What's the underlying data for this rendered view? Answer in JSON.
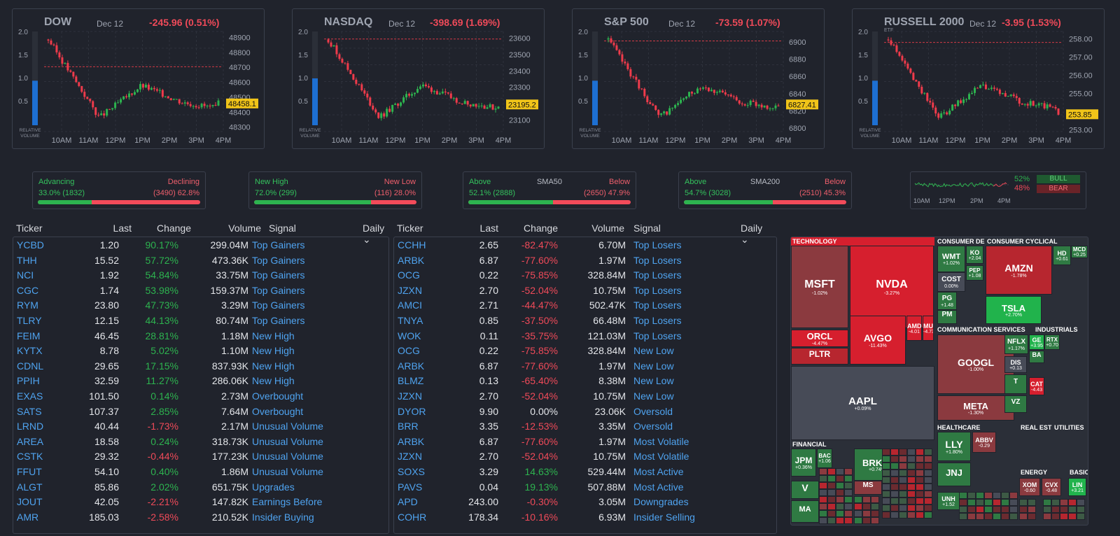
{
  "indices": [
    {
      "name": "DOW",
      "etf": "",
      "date": "Dec 12",
      "change": "-245.96 (0.51%)",
      "price_tag": "48458.1",
      "y_ticks": [
        "48900",
        "48800",
        "48700",
        "48600",
        "48500",
        "48400",
        "48300"
      ],
      "x_ticks": [
        "10AM",
        "11AM",
        "12PM",
        "1PM",
        "2PM",
        "3PM",
        "4PM"
      ],
      "vol_ticks": [
        "2.0",
        "1.5",
        "1.0",
        "0.5"
      ],
      "vol_label_1": "RELATIVE",
      "vol_label_2": "VOLUME",
      "relative_volume": 0.95,
      "prev_close": 48704,
      "ylim": [
        48270,
        48940
      ],
      "last": 48458.1
    },
    {
      "name": "NASDAQ",
      "etf": "",
      "date": "Dec 12",
      "change": "-398.69 (1.69%)",
      "price_tag": "23195.2",
      "y_ticks": [
        "23600",
        "23500",
        "23400",
        "23300",
        "23200",
        "23100"
      ],
      "x_ticks": [
        "10AM",
        "11AM",
        "12PM",
        "1PM",
        "2PM",
        "3PM",
        "4PM"
      ],
      "vol_ticks": [
        "2.0",
        "1.5",
        "1.0",
        "0.5"
      ],
      "vol_label_1": "RELATIVE",
      "vol_label_2": "VOLUME",
      "relative_volume": 1.0,
      "prev_close": 23594,
      "ylim": [
        23030,
        23640
      ],
      "last": 23195.2
    },
    {
      "name": "S&P 500",
      "etf": "",
      "date": "Dec 12",
      "change": "-73.59 (1.07%)",
      "price_tag": "6827.41",
      "y_ticks": [
        "6900",
        "6880",
        "6860",
        "6840",
        "6820",
        "6800"
      ],
      "x_ticks": [
        "10AM",
        "11AM",
        "12PM",
        "1PM",
        "2PM",
        "3PM",
        "4PM"
      ],
      "vol_ticks": [
        "2.0",
        "1.5",
        "1.0",
        "0.5"
      ],
      "vol_label_1": "RELATIVE",
      "vol_label_2": "VOLUME",
      "relative_volume": 0.95,
      "prev_close": 6901,
      "ylim": [
        6796,
        6912
      ],
      "last": 6827.41
    },
    {
      "name": "RUSSELL 2000",
      "etf": "ETF",
      "date": "Dec 12",
      "change": "-3.95 (1.53%)",
      "price_tag": "253.85",
      "y_ticks": [
        "258.00",
        "257.00",
        "256.00",
        "255.00",
        "253.00"
      ],
      "x_ticks": [
        "10AM",
        "11AM",
        "12PM",
        "1PM",
        "2PM",
        "3PM",
        "4PM"
      ],
      "vol_ticks": [
        "2.0",
        "1.5",
        "1.0",
        "0.5"
      ],
      "vol_label_1": "RELATIVE",
      "vol_label_2": "VOLUME",
      "relative_volume": 0.95,
      "prev_close": 257.8,
      "ylim": [
        252.9,
        258.4
      ],
      "last": 253.85
    }
  ],
  "breadth": [
    {
      "left_title": "Advancing",
      "right_title": "Declining",
      "center_title": "",
      "left_value": "33.0% (1832)",
      "right_value": "(3490) 62.8%",
      "left_fraction": 0.33
    },
    {
      "left_title": "New High",
      "right_title": "New Low",
      "center_title": "",
      "left_value": "72.0% (299)",
      "right_value": "(116) 28.0%",
      "left_fraction": 0.72
    },
    {
      "left_title": "Above",
      "right_title": "Below",
      "center_title": "SMA50",
      "left_value": "52.1% (2888)",
      "right_value": "(2650) 47.9%",
      "left_fraction": 0.521
    },
    {
      "left_title": "Above",
      "right_title": "Below",
      "center_title": "SMA200",
      "left_value": "54.7% (3028)",
      "right_value": "(2510) 45.3%",
      "left_fraction": 0.547
    }
  ],
  "sentiment": {
    "bull_pct": "52%",
    "bear_pct": "48%",
    "bull_label": "BULL",
    "bear_label": "BEAR",
    "x_ticks": [
      "10AM",
      "12PM",
      "2PM",
      "4PM"
    ]
  },
  "columns": {
    "ticker": "Ticker",
    "last": "Last",
    "change": "Change",
    "volume": "Volume",
    "signal": "Signal",
    "period": "Daily"
  },
  "gainers_table": [
    {
      "ticker": "YCBD",
      "last": "1.20",
      "change": "90.17%",
      "dir": "up",
      "volume": "299.04M",
      "signal": "Top Gainers"
    },
    {
      "ticker": "THH",
      "last": "15.52",
      "change": "57.72%",
      "dir": "up",
      "volume": "473.36K",
      "signal": "Top Gainers"
    },
    {
      "ticker": "NCI",
      "last": "1.92",
      "change": "54.84%",
      "dir": "up",
      "volume": "33.75M",
      "signal": "Top Gainers"
    },
    {
      "ticker": "CGC",
      "last": "1.74",
      "change": "53.98%",
      "dir": "up",
      "volume": "159.37M",
      "signal": "Top Gainers"
    },
    {
      "ticker": "RYM",
      "last": "23.80",
      "change": "47.73%",
      "dir": "up",
      "volume": "3.29M",
      "signal": "Top Gainers"
    },
    {
      "ticker": "TLRY",
      "last": "12.15",
      "change": "44.13%",
      "dir": "up",
      "volume": "80.74M",
      "signal": "Top Gainers"
    },
    {
      "ticker": "FEIM",
      "last": "46.45",
      "change": "28.81%",
      "dir": "up",
      "volume": "1.18M",
      "signal": "New High"
    },
    {
      "ticker": "KYTX",
      "last": "8.78",
      "change": "5.02%",
      "dir": "up",
      "volume": "1.10M",
      "signal": "New High"
    },
    {
      "ticker": "CDNL",
      "last": "29.65",
      "change": "17.15%",
      "dir": "up",
      "volume": "837.93K",
      "signal": "New High"
    },
    {
      "ticker": "PPIH",
      "last": "32.59",
      "change": "11.27%",
      "dir": "up",
      "volume": "286.06K",
      "signal": "New High"
    },
    {
      "ticker": "EXAS",
      "last": "101.50",
      "change": "0.14%",
      "dir": "up",
      "volume": "2.73M",
      "signal": "Overbought"
    },
    {
      "ticker": "SATS",
      "last": "107.37",
      "change": "2.85%",
      "dir": "up",
      "volume": "7.64M",
      "signal": "Overbought"
    },
    {
      "ticker": "LRND",
      "last": "40.44",
      "change": "-1.73%",
      "dir": "down",
      "volume": "2.17M",
      "signal": "Unusual Volume"
    },
    {
      "ticker": "AREA",
      "last": "18.58",
      "change": "0.24%",
      "dir": "up",
      "volume": "318.73K",
      "signal": "Unusual Volume"
    },
    {
      "ticker": "CSTK",
      "last": "29.32",
      "change": "-0.44%",
      "dir": "down",
      "volume": "177.23K",
      "signal": "Unusual Volume"
    },
    {
      "ticker": "FFUT",
      "last": "54.10",
      "change": "0.40%",
      "dir": "up",
      "volume": "1.86M",
      "signal": "Unusual Volume"
    },
    {
      "ticker": "ALGT",
      "last": "85.86",
      "change": "2.02%",
      "dir": "up",
      "volume": "651.75K",
      "signal": "Upgrades"
    },
    {
      "ticker": "JOUT",
      "last": "42.05",
      "change": "-2.21%",
      "dir": "down",
      "volume": "147.82K",
      "signal": "Earnings Before"
    },
    {
      "ticker": "AMR",
      "last": "185.03",
      "change": "-2.58%",
      "dir": "down",
      "volume": "210.52K",
      "signal": "Insider Buying"
    }
  ],
  "losers_table": [
    {
      "ticker": "CCHH",
      "last": "2.65",
      "change": "-82.47%",
      "dir": "down",
      "volume": "6.70M",
      "signal": "Top Losers"
    },
    {
      "ticker": "ARBK",
      "last": "6.87",
      "change": "-77.60%",
      "dir": "down",
      "volume": "1.97M",
      "signal": "Top Losers"
    },
    {
      "ticker": "OCG",
      "last": "0.22",
      "change": "-75.85%",
      "dir": "down",
      "volume": "328.84M",
      "signal": "Top Losers"
    },
    {
      "ticker": "JZXN",
      "last": "2.70",
      "change": "-52.04%",
      "dir": "down",
      "volume": "10.75M",
      "signal": "Top Losers"
    },
    {
      "ticker": "AMCI",
      "last": "2.71",
      "change": "-44.47%",
      "dir": "down",
      "volume": "502.47K",
      "signal": "Top Losers"
    },
    {
      "ticker": "TNYA",
      "last": "0.85",
      "change": "-37.50%",
      "dir": "down",
      "volume": "66.48M",
      "signal": "Top Losers"
    },
    {
      "ticker": "WOK",
      "last": "0.11",
      "change": "-35.75%",
      "dir": "down",
      "volume": "121.03M",
      "signal": "Top Losers"
    },
    {
      "ticker": "OCG",
      "last": "0.22",
      "change": "-75.85%",
      "dir": "down",
      "volume": "328.84M",
      "signal": "New Low"
    },
    {
      "ticker": "ARBK",
      "last": "6.87",
      "change": "-77.60%",
      "dir": "down",
      "volume": "1.97M",
      "signal": "New Low"
    },
    {
      "ticker": "BLMZ",
      "last": "0.13",
      "change": "-65.40%",
      "dir": "down",
      "volume": "8.38M",
      "signal": "New Low"
    },
    {
      "ticker": "JZXN",
      "last": "2.70",
      "change": "-52.04%",
      "dir": "down",
      "volume": "10.75M",
      "signal": "New Low"
    },
    {
      "ticker": "DYOR",
      "last": "9.90",
      "change": "0.00%",
      "dir": "flat",
      "volume": "23.06K",
      "signal": "Oversold"
    },
    {
      "ticker": "BRR",
      "last": "3.35",
      "change": "-12.53%",
      "dir": "down",
      "volume": "3.35M",
      "signal": "Oversold"
    },
    {
      "ticker": "ARBK",
      "last": "6.87",
      "change": "-77.60%",
      "dir": "down",
      "volume": "1.97M",
      "signal": "Most Volatile"
    },
    {
      "ticker": "JZXN",
      "last": "2.70",
      "change": "-52.04%",
      "dir": "down",
      "volume": "10.75M",
      "signal": "Most Volatile"
    },
    {
      "ticker": "SOXS",
      "last": "3.29",
      "change": "14.63%",
      "dir": "up",
      "volume": "529.44M",
      "signal": "Most Active"
    },
    {
      "ticker": "PAVS",
      "last": "0.04",
      "change": "19.13%",
      "dir": "up",
      "volume": "507.88M",
      "signal": "Most Active"
    },
    {
      "ticker": "APD",
      "last": "243.00",
      "change": "-0.30%",
      "dir": "down",
      "volume": "3.05M",
      "signal": "Downgrades"
    },
    {
      "ticker": "COHR",
      "last": "178.34",
      "change": "-10.16%",
      "dir": "down",
      "volume": "6.93M",
      "signal": "Insider Selling"
    }
  ],
  "treemap": {
    "sectors": [
      "TECHNOLOGY",
      "CONSUMER DE",
      "CONSUMER CYCLICAL",
      "COMMUNICATION SERVICES",
      "INDUSTRIALS",
      "FINANCIAL",
      "HEALTHCARE",
      "REAL EST",
      "UTILITIES",
      "ENERGY",
      "BASIC"
    ],
    "tiles": [
      {
        "t": "MSFT",
        "p": "-1.02%",
        "c": "#8b3a3f"
      },
      {
        "t": "NVDA",
        "p": "-3.27%",
        "c": "#d61f2e"
      },
      {
        "t": "ORCL",
        "p": "-4.47%",
        "c": "#d61f2e"
      },
      {
        "t": "PLTR",
        "p": "",
        "c": "#b7262f"
      },
      {
        "t": "AVGO",
        "p": "-11.43%",
        "c": "#d61f2e"
      },
      {
        "t": "AMD",
        "p": "-4.01",
        "c": "#d61f2e"
      },
      {
        "t": "MU",
        "p": "-4.73",
        "c": "#d61f2e"
      },
      {
        "t": "AAPL",
        "p": "+0.09%",
        "c": "#474b57"
      },
      {
        "t": "WMT",
        "p": "+1.02%",
        "c": "#2f7a43"
      },
      {
        "t": "KO",
        "p": "+2.04",
        "c": "#2f7a43"
      },
      {
        "t": "COST",
        "p": "0.00%",
        "c": "#474b57"
      },
      {
        "t": "PEP",
        "p": "+1.08",
        "c": "#2f7a43"
      },
      {
        "t": "PG",
        "p": "+1.48",
        "c": "#2f7a43"
      },
      {
        "t": "PM",
        "p": "",
        "c": "#2f7a43"
      },
      {
        "t": "AMZN",
        "p": "-1.78%",
        "c": "#b7262f"
      },
      {
        "t": "TSLA",
        "p": "+2.70%",
        "c": "#21b34c"
      },
      {
        "t": "HD",
        "p": "+0.61",
        "c": "#2f7a43"
      },
      {
        "t": "MCD",
        "p": "+0.25",
        "c": "#2f7a43"
      },
      {
        "t": "GOOGL",
        "p": "-1.00%",
        "c": "#8b3a3f"
      },
      {
        "t": "META",
        "p": "-1.30%",
        "c": "#8b3a3f"
      },
      {
        "t": "NFLX",
        "p": "+1.17%",
        "c": "#2f7a43"
      },
      {
        "t": "GE",
        "p": "+3.95",
        "c": "#21b34c"
      },
      {
        "t": "RTX",
        "p": "+0.70",
        "c": "#2f7a43"
      },
      {
        "t": "BA",
        "p": "",
        "c": "#2f7a43"
      },
      {
        "t": "CAT",
        "p": "-4.43",
        "c": "#d61f2e"
      },
      {
        "t": "T",
        "p": "",
        "c": "#2f7a43"
      },
      {
        "t": "VZ",
        "p": "",
        "c": "#2f7a43"
      },
      {
        "t": "DIS",
        "p": "+0.13",
        "c": "#474b57"
      },
      {
        "t": "JPM",
        "p": "+0.36%",
        "c": "#2f7a43"
      },
      {
        "t": "BAC",
        "p": "+1.06",
        "c": "#2f7a43"
      },
      {
        "t": "BRK-B",
        "p": "+0.74%",
        "c": "#2f7a43"
      },
      {
        "t": "V",
        "p": "",
        "c": "#2f7a43"
      },
      {
        "t": "MA",
        "p": "",
        "c": "#2f7a43"
      },
      {
        "t": "MS",
        "p": "",
        "c": "#8b3a3f"
      },
      {
        "t": "LLY",
        "p": "+1.80%",
        "c": "#2f7a43"
      },
      {
        "t": "JNJ",
        "p": "",
        "c": "#2f7a43"
      },
      {
        "t": "ABBV",
        "p": "-0.29",
        "c": "#8b3a3f"
      },
      {
        "t": "UNH",
        "p": "+1.52",
        "c": "#2f7a43"
      },
      {
        "t": "XOM",
        "p": "-0.60",
        "c": "#8b3a3f"
      },
      {
        "t": "CVX",
        "p": "-0.48",
        "c": "#8b3a3f"
      },
      {
        "t": "LIN",
        "p": "+3.21",
        "c": "#21b34c"
      }
    ]
  }
}
